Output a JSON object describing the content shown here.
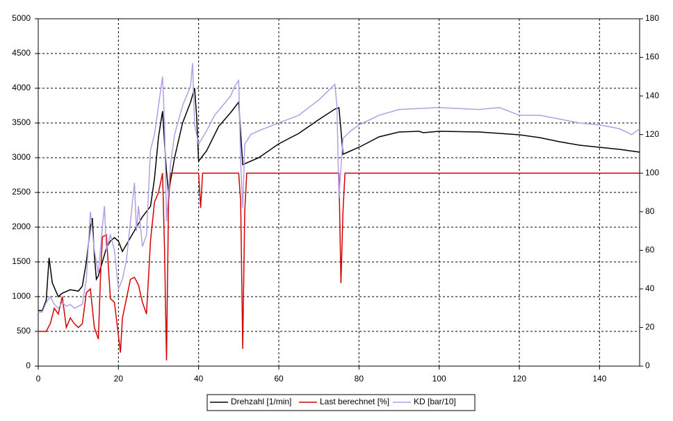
{
  "chart_data": {
    "type": "line",
    "xlim": [
      0,
      150
    ],
    "xticks": [
      0,
      20,
      40,
      60,
      80,
      100,
      120,
      140
    ],
    "ylim": [
      0,
      5000
    ],
    "yticks": [
      0,
      500,
      1000,
      1500,
      2000,
      2500,
      3000,
      3500,
      4000,
      4500,
      5000
    ],
    "y2lim": [
      0,
      180
    ],
    "y2ticks": [
      0,
      20,
      40,
      60,
      80,
      100,
      120,
      140,
      160,
      180
    ],
    "grid": true,
    "legend": "bottom",
    "series": [
      {
        "name": "Drehzahl [1/min]",
        "color": "#000000",
        "axis": "y",
        "x": [
          0,
          1,
          2,
          2.7,
          3.5,
          5,
          6,
          8,
          10,
          11,
          12,
          13,
          13.5,
          14,
          14.5,
          15,
          16,
          17,
          18,
          19,
          20,
          21,
          22,
          24,
          26,
          28,
          29,
          30,
          31,
          31.5,
          32,
          32.5,
          34,
          36,
          38,
          39,
          39.5,
          40,
          42,
          45,
          48,
          50,
          51,
          55,
          60,
          65,
          70,
          74,
          75,
          75.5,
          76,
          78,
          80,
          85,
          90,
          95,
          96,
          100,
          110,
          120,
          125,
          130,
          135,
          140,
          145,
          150
        ],
        "values": [
          800,
          800,
          950,
          1560,
          1200,
          1000,
          1050,
          1100,
          1080,
          1150,
          1500,
          2000,
          2130,
          1600,
          1250,
          1300,
          1500,
          1700,
          1800,
          1850,
          1800,
          1650,
          1750,
          1950,
          2150,
          2300,
          2700,
          3300,
          3670,
          3200,
          2800,
          2500,
          3000,
          3500,
          3800,
          4000,
          3600,
          2950,
          3100,
          3450,
          3650,
          3800,
          2900,
          3000,
          3200,
          3350,
          3550,
          3700,
          3720,
          3400,
          3050,
          3100,
          3150,
          3300,
          3370,
          3380,
          3360,
          3380,
          3370,
          3330,
          3290,
          3230,
          3180,
          3150,
          3120,
          3080
        ]
      },
      {
        "name": "Last berechnet [%]",
        "color": "#d40000",
        "axis": "y2",
        "x": [
          0,
          2,
          3,
          4,
          5,
          6,
          7,
          8,
          9,
          10,
          11,
          12,
          13,
          14,
          15,
          15.5,
          16,
          17,
          18,
          19,
          20,
          20.5,
          21,
          22,
          23,
          24,
          25,
          26,
          27,
          28,
          29,
          30,
          31,
          31.5,
          32,
          32.5,
          33,
          40,
          40.5,
          41,
          50,
          50.5,
          51,
          51.5,
          52,
          75,
          75.5,
          76,
          76.5,
          150
        ],
        "values": [
          18,
          18,
          22,
          30,
          27,
          36,
          20,
          25,
          22,
          20,
          22,
          38,
          40,
          20,
          14,
          45,
          67,
          68,
          35,
          33,
          16,
          7,
          25,
          35,
          45,
          46,
          42,
          33,
          27,
          65,
          85,
          90,
          100,
          60,
          3,
          85,
          100,
          100,
          82,
          100,
          100,
          85,
          9,
          80,
          100,
          100,
          43,
          80,
          100,
          100
        ]
      },
      {
        "name": "KD [bar/10]",
        "color": "#b39ee6",
        "axis": "y2",
        "x": [
          0,
          1,
          2,
          3,
          4,
          5,
          6,
          7,
          8,
          9,
          10,
          11,
          12,
          13,
          14,
          15,
          16,
          16.5,
          17,
          18,
          19,
          20,
          21,
          22,
          24,
          24.5,
          25,
          26,
          27,
          28,
          29,
          30,
          31,
          31.5,
          32,
          33,
          34,
          36,
          38,
          38.5,
          39,
          40,
          42,
          44,
          46,
          48,
          49,
          50,
          50.5,
          51,
          51.5,
          53,
          55,
          60,
          65,
          70,
          74,
          74.5,
          75,
          76,
          78,
          80,
          85,
          90,
          100,
          110,
          115,
          120,
          125,
          130,
          135,
          140,
          145,
          148,
          150
        ],
        "values": [
          28,
          28,
          33,
          36,
          32,
          30,
          33,
          31,
          32,
          30,
          31,
          32,
          45,
          80,
          60,
          48,
          72,
          83,
          60,
          68,
          60,
          40,
          45,
          55,
          95,
          70,
          83,
          62,
          68,
          112,
          120,
          135,
          150,
          125,
          75,
          105,
          120,
          135,
          145,
          157,
          125,
          115,
          122,
          130,
          135,
          140,
          145,
          148,
          105,
          82,
          115,
          120,
          122,
          126,
          130,
          138,
          146,
          135,
          87,
          118,
          122,
          125,
          130,
          133,
          134,
          133,
          134,
          130,
          130,
          128,
          126,
          125,
          123,
          120,
          123
        ]
      }
    ]
  }
}
